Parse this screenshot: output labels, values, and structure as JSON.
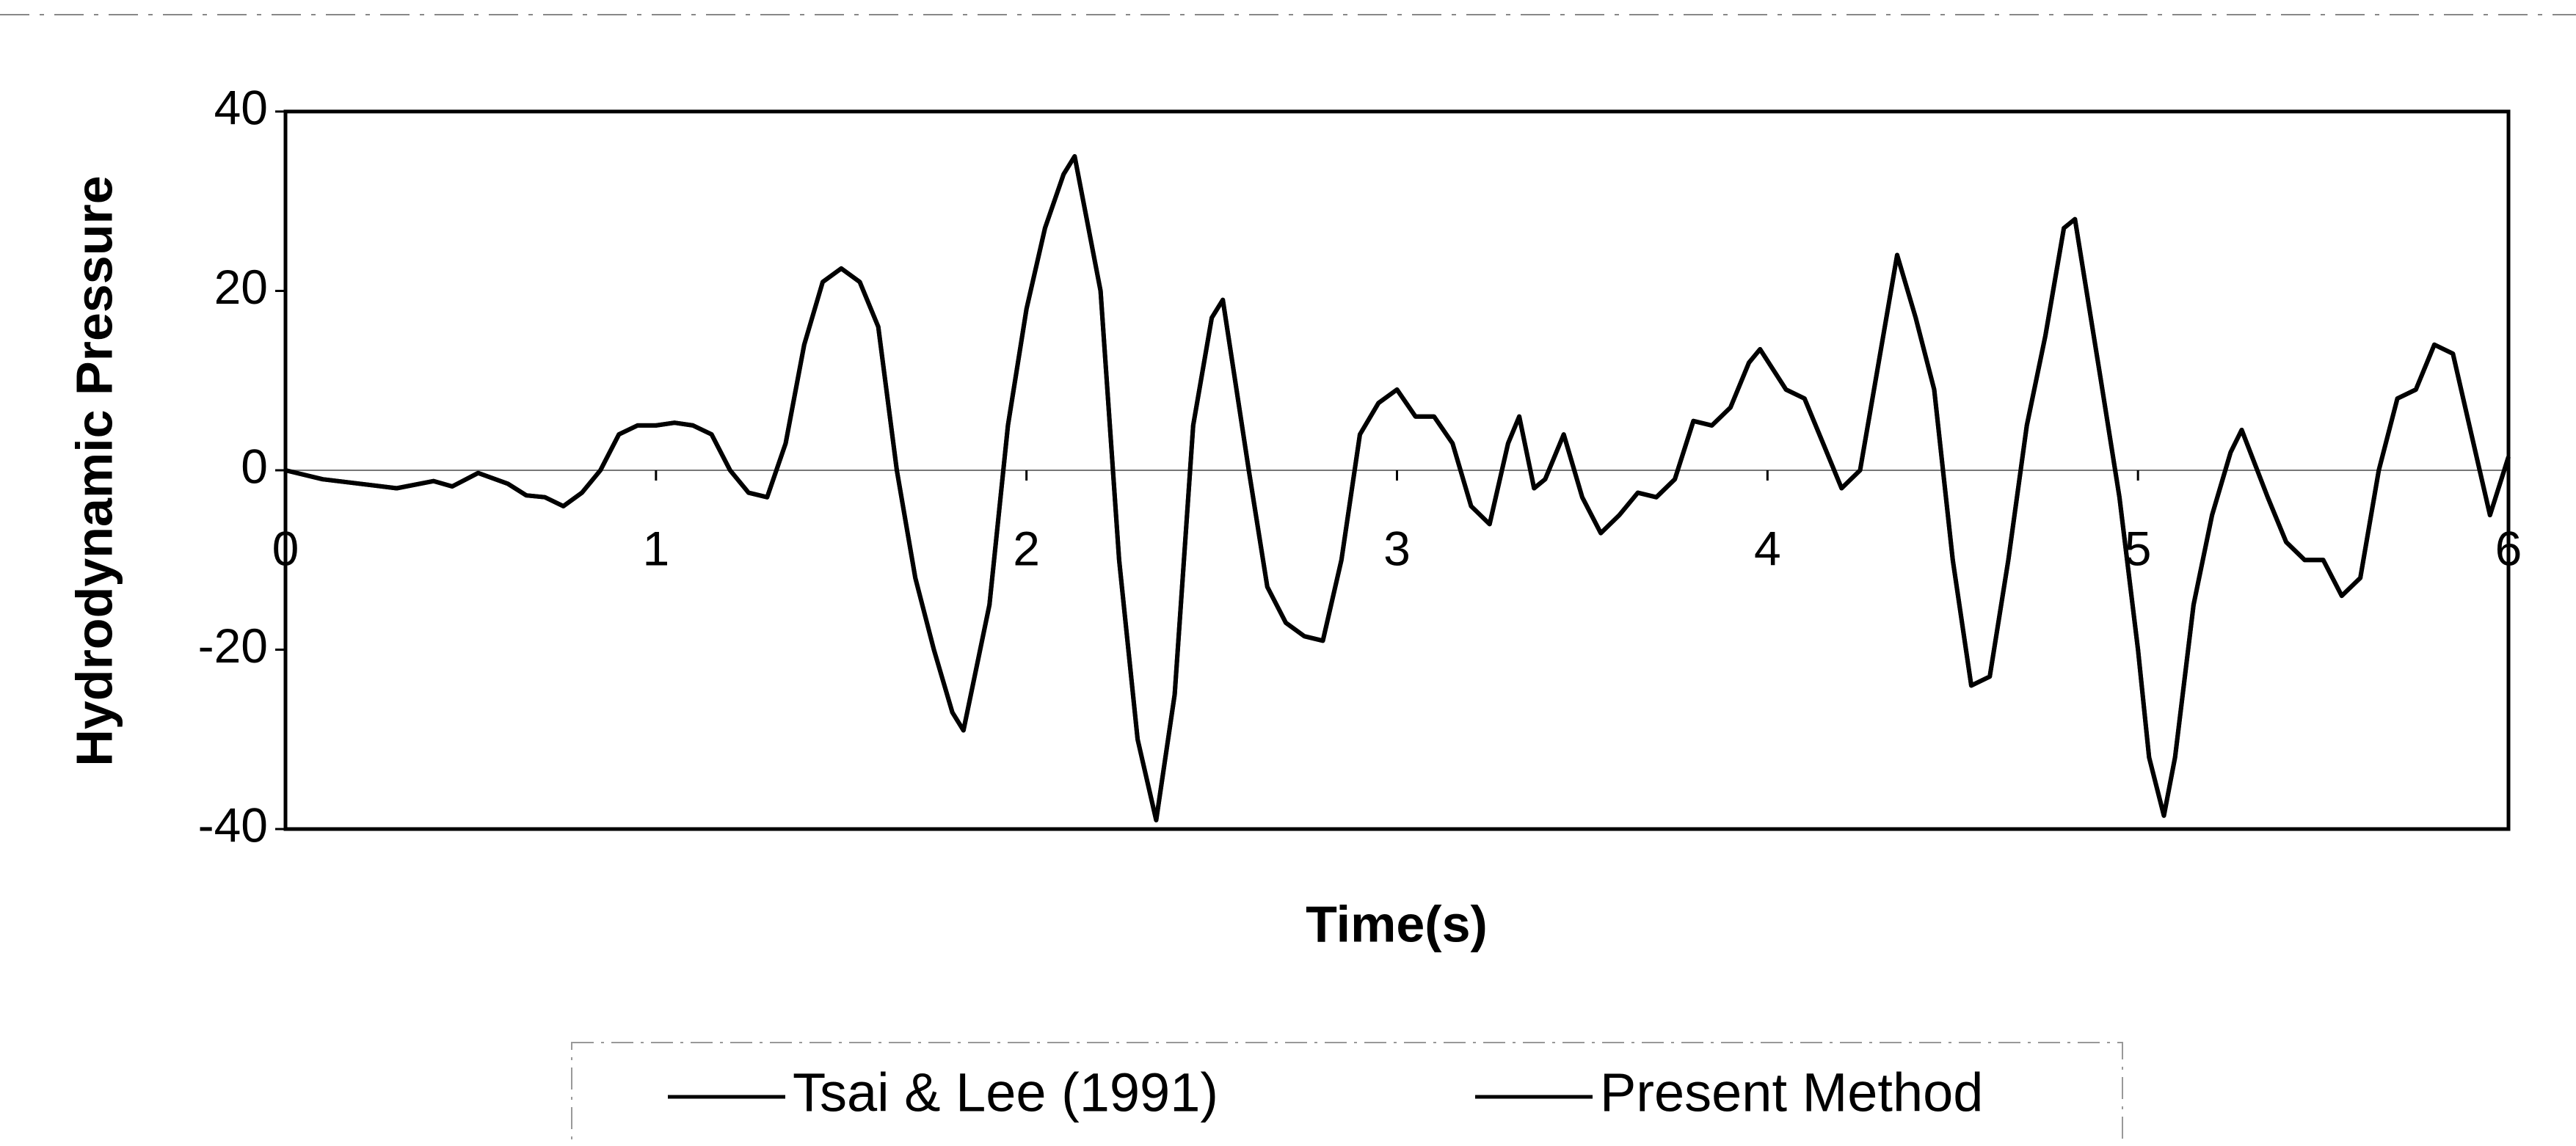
{
  "chart_data": {
    "type": "line",
    "xlabel": "Time(s)",
    "ylabel": "Hydrodynamic Pressure",
    "xlim": [
      0,
      6
    ],
    "ylim": [
      -40,
      40
    ],
    "xticks": [
      0,
      1,
      2,
      3,
      4,
      5,
      6
    ],
    "yticks": [
      -40,
      -20,
      0,
      20,
      40
    ],
    "x": [
      0,
      0.1,
      0.2,
      0.3,
      0.4,
      0.45,
      0.52,
      0.6,
      0.65,
      0.7,
      0.75,
      0.8,
      0.85,
      0.9,
      0.95,
      1.0,
      1.05,
      1.1,
      1.15,
      1.2,
      1.25,
      1.3,
      1.35,
      1.4,
      1.45,
      1.5,
      1.55,
      1.6,
      1.65,
      1.7,
      1.75,
      1.8,
      1.83,
      1.9,
      1.95,
      2.0,
      2.05,
      2.1,
      2.13,
      2.2,
      2.25,
      2.3,
      2.35,
      2.4,
      2.45,
      2.5,
      2.53,
      2.6,
      2.65,
      2.7,
      2.75,
      2.8,
      2.85,
      2.9,
      2.95,
      3.0,
      3.05,
      3.1,
      3.15,
      3.2,
      3.25,
      3.3,
      3.33,
      3.37,
      3.4,
      3.45,
      3.5,
      3.55,
      3.6,
      3.65,
      3.7,
      3.75,
      3.8,
      3.85,
      3.9,
      3.95,
      3.98,
      4.05,
      4.1,
      4.15,
      4.2,
      4.25,
      4.3,
      4.35,
      4.4,
      4.45,
      4.5,
      4.55,
      4.6,
      4.65,
      4.7,
      4.75,
      4.8,
      4.83,
      4.9,
      4.95,
      5.0,
      5.03,
      5.07,
      5.1,
      5.15,
      5.2,
      5.25,
      5.28,
      5.35,
      5.4,
      5.45,
      5.5,
      5.55,
      5.6,
      5.65,
      5.7,
      5.75,
      5.8,
      5.85,
      5.9,
      5.95,
      6.0
    ],
    "series": [
      {
        "name": "Tsai & Lee (1991)",
        "color": "#000000",
        "values": [
          0,
          -1,
          -1.5,
          -2,
          -1.2,
          -1.8,
          -0.3,
          -1.5,
          -2.8,
          -3,
          -4,
          -2.5,
          0,
          4,
          5,
          5,
          5.3,
          5,
          4,
          0,
          -2.5,
          -3,
          3,
          14,
          21,
          22.5,
          21,
          16,
          0,
          -12,
          -20,
          -27,
          -29,
          -15,
          5,
          18,
          27,
          33,
          35,
          20,
          -10,
          -30,
          -39,
          -25,
          5,
          17,
          19,
          0,
          -13,
          -17,
          -18.5,
          -19,
          -10,
          4,
          7.5,
          9,
          6,
          6,
          3,
          -4,
          -6,
          3,
          6,
          -2,
          -1,
          4,
          -3,
          -7,
          -5,
          -2.5,
          -3,
          -1,
          5.5,
          5,
          7,
          12,
          13.5,
          9,
          8,
          3,
          -2,
          0,
          12,
          24,
          17,
          9,
          -10,
          -24,
          -23,
          -10,
          5,
          15,
          27,
          28,
          10,
          -3,
          -20,
          -32,
          -38.5,
          -32,
          -15,
          -5,
          2,
          4.5,
          -3,
          -8,
          -10,
          -10,
          -14,
          -12,
          0,
          8,
          9,
          14,
          13,
          4,
          -5,
          1.5
        ]
      },
      {
        "name": "Present Method",
        "color": "#000000",
        "values": [
          0,
          -1,
          -1.5,
          -2,
          -1.2,
          -1.8,
          -0.3,
          -1.5,
          -2.8,
          -3,
          -4,
          -2.5,
          0,
          4,
          5,
          5,
          5.3,
          5,
          4,
          0,
          -2.5,
          -3,
          3,
          14,
          21,
          22.5,
          21,
          16,
          0,
          -12,
          -20,
          -27,
          -29,
          -15,
          5,
          18,
          27,
          33,
          35,
          20,
          -10,
          -30,
          -39,
          -25,
          5,
          17,
          19,
          0,
          -13,
          -17,
          -18.5,
          -19,
          -10,
          4,
          7.5,
          9,
          6,
          6,
          3,
          -4,
          -6,
          3,
          6,
          -2,
          -1,
          4,
          -3,
          -7,
          -5,
          -2.5,
          -3,
          -1,
          5.5,
          5,
          7,
          12,
          13.5,
          9,
          8,
          3,
          -2,
          0,
          12,
          24,
          17,
          9,
          -10,
          -24,
          -23,
          -10,
          5,
          15,
          27,
          28,
          10,
          -3,
          -20,
          -32,
          -38.5,
          -32,
          -15,
          -5,
          2,
          4.5,
          -3,
          -8,
          -10,
          -10,
          -14,
          -12,
          0,
          8,
          9,
          14,
          13,
          4,
          -5,
          1.5
        ]
      }
    ]
  }
}
